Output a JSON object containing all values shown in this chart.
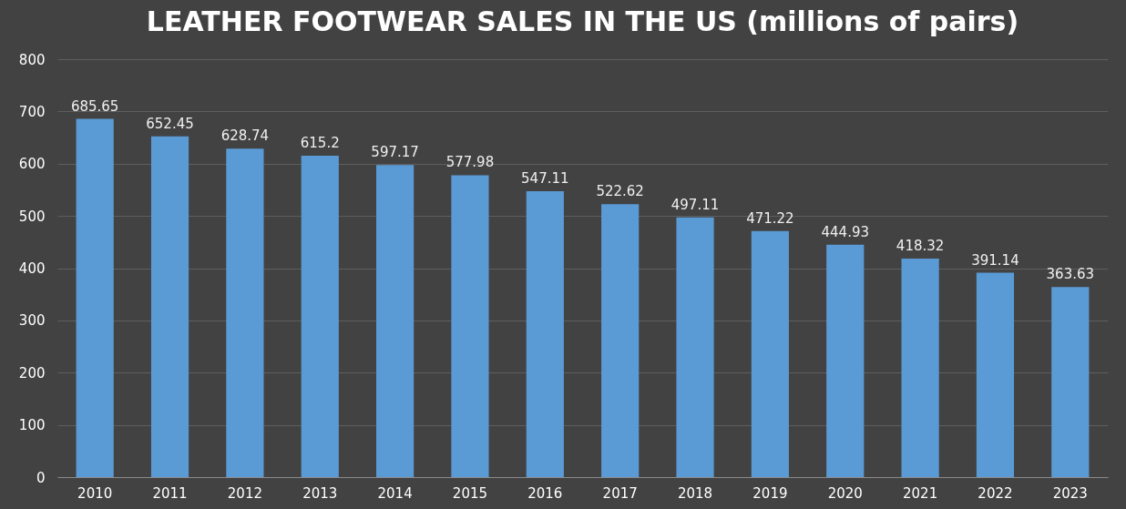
{
  "chart_data": {
    "type": "bar",
    "title": "LEATHER FOOTWEAR SALES IN THE US (millions of pairs)",
    "categories": [
      "2010",
      "2011",
      "2012",
      "2013",
      "2014",
      "2015",
      "2016",
      "2017",
      "2018",
      "2019",
      "2020",
      "2021",
      "2022",
      "2023"
    ],
    "values": [
      685.65,
      652.45,
      628.74,
      615.2,
      597.17,
      577.98,
      547.11,
      522.62,
      497.11,
      471.22,
      444.93,
      418.32,
      391.14,
      363.63
    ],
    "color": "#5b9bd5",
    "ylim": [
      0,
      800
    ],
    "yticks": [
      0,
      100,
      200,
      300,
      400,
      500,
      600,
      700,
      800
    ],
    "grid": "y",
    "data_labels": true
  }
}
